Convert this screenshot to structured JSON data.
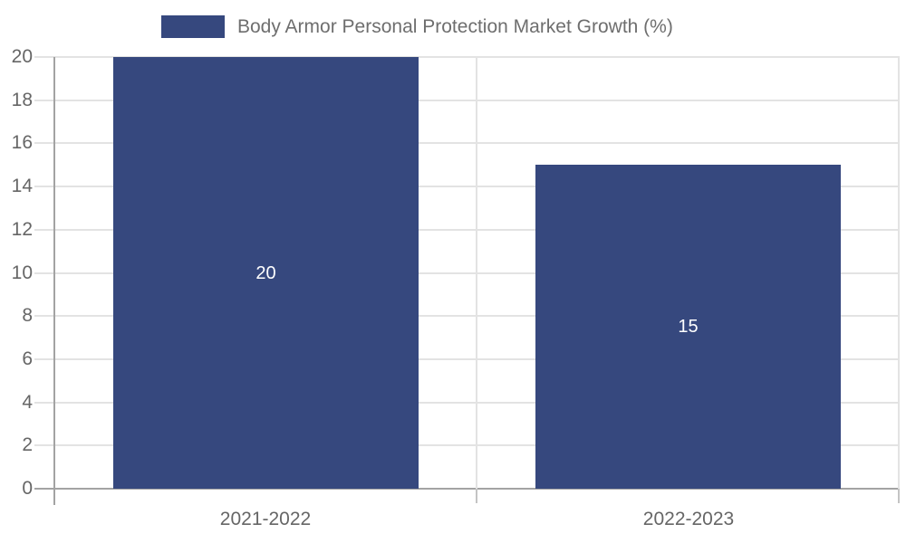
{
  "legend": {
    "label": "Body Armor Personal Protection Market Growth (%)"
  },
  "chart_data": {
    "type": "bar",
    "title": "Body Armor Personal Protection Market Growth (%)",
    "categories": [
      "2021-2022",
      "2022-2023"
    ],
    "values": [
      20,
      15
    ],
    "data_labels": [
      "20",
      "15"
    ],
    "xlabel": "",
    "ylabel": "",
    "ylim": [
      0,
      20
    ],
    "ytick_step": 2,
    "ytick_labels": [
      "0",
      "2",
      "4",
      "6",
      "8",
      "10",
      "12",
      "14",
      "16",
      "18",
      "20"
    ],
    "grid": true,
    "legend_position": "top",
    "colors": {
      "bar": "#36487E",
      "bar_label_text": "#ffffff",
      "grid_line": "#e3e3e3",
      "axis_line": "#a3a3a3",
      "boundary_tick": "#c4c4c4",
      "tick_text": "#666666",
      "legend_text": "#6e6e6e",
      "background": "#ffffff"
    }
  }
}
